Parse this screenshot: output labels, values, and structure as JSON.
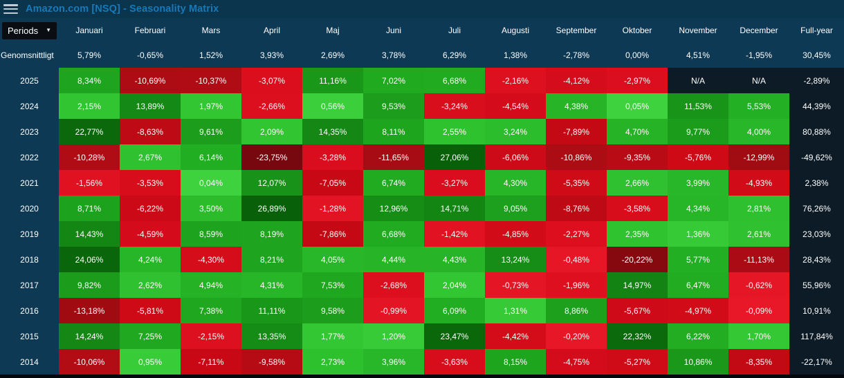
{
  "app": {
    "title": "Amazon.com [NSQ] - Seasonality Matrix"
  },
  "toolbar": {
    "periods_label": "Periods"
  },
  "chart_data": {
    "type": "heatmap",
    "columns": [
      "Januari",
      "Februari",
      "Mars",
      "April",
      "Maj",
      "Juni",
      "Juli",
      "Augusti",
      "September",
      "Oktober",
      "November",
      "December",
      "Full-year"
    ],
    "average": {
      "label": "Genomsnittligt",
      "values": [
        "5,79%",
        "-0,65%",
        "1,52%",
        "3,93%",
        "2,69%",
        "3,78%",
        "6,29%",
        "1,38%",
        "-2,78%",
        "0,00%",
        "4,51%",
        "-1,95%",
        "30,45%"
      ]
    },
    "rows": [
      {
        "year": "2025",
        "values": [
          "8,34%",
          "-10,69%",
          "-10,37%",
          "-3,07%",
          "11,16%",
          "7,02%",
          "6,68%",
          "-2,16%",
          "-4,12%",
          "-2,97%",
          "N/A",
          "N/A",
          "-2,89%"
        ]
      },
      {
        "year": "2024",
        "values": [
          "2,15%",
          "13,89%",
          "1,97%",
          "-2,66%",
          "0,56%",
          "9,53%",
          "-3,24%",
          "-4,54%",
          "4,38%",
          "0,05%",
          "11,53%",
          "5,53%",
          "44,39%"
        ]
      },
      {
        "year": "2023",
        "values": [
          "22,77%",
          "-8,63%",
          "9,61%",
          "2,09%",
          "14,35%",
          "8,11%",
          "2,55%",
          "3,24%",
          "-7,89%",
          "4,70%",
          "9,77%",
          "4,00%",
          "80,88%"
        ]
      },
      {
        "year": "2022",
        "values": [
          "-10,28%",
          "2,67%",
          "6,14%",
          "-23,75%",
          "-3,28%",
          "-11,65%",
          "27,06%",
          "-6,06%",
          "-10,86%",
          "-9,35%",
          "-5,76%",
          "-12,99%",
          "-49,62%"
        ]
      },
      {
        "year": "2021",
        "values": [
          "-1,56%",
          "-3,53%",
          "0,04%",
          "12,07%",
          "-7,05%",
          "6,74%",
          "-3,27%",
          "4,30%",
          "-5,35%",
          "2,66%",
          "3,99%",
          "-4,93%",
          "2,38%"
        ]
      },
      {
        "year": "2020",
        "values": [
          "8,71%",
          "-6,22%",
          "3,50%",
          "26,89%",
          "-1,28%",
          "12,96%",
          "14,71%",
          "9,05%",
          "-8,76%",
          "-3,58%",
          "4,34%",
          "2,81%",
          "76,26%"
        ]
      },
      {
        "year": "2019",
        "values": [
          "14,43%",
          "-4,59%",
          "8,59%",
          "8,19%",
          "-7,86%",
          "6,68%",
          "-1,42%",
          "-4,85%",
          "-2,27%",
          "2,35%",
          "1,36%",
          "2,61%",
          "23,03%"
        ]
      },
      {
        "year": "2018",
        "values": [
          "24,06%",
          "4,24%",
          "-4,30%",
          "8,21%",
          "4,05%",
          "4,44%",
          "4,43%",
          "13,24%",
          "-0,48%",
          "-20,22%",
          "5,77%",
          "-11,13%",
          "28,43%"
        ]
      },
      {
        "year": "2017",
        "values": [
          "9,82%",
          "2,62%",
          "4,94%",
          "4,31%",
          "7,53%",
          "-2,68%",
          "2,04%",
          "-0,73%",
          "-1,96%",
          "14,97%",
          "6,47%",
          "-0,62%",
          "55,96%"
        ]
      },
      {
        "year": "2016",
        "values": [
          "-13,18%",
          "-5,81%",
          "7,38%",
          "11,11%",
          "9,58%",
          "-0,99%",
          "6,09%",
          "1,31%",
          "8,86%",
          "-5,67%",
          "-4,97%",
          "-0,09%",
          "10,91%"
        ]
      },
      {
        "year": "2015",
        "values": [
          "14,24%",
          "7,25%",
          "-2,15%",
          "13,35%",
          "1,77%",
          "1,20%",
          "23,47%",
          "-4,42%",
          "-0,20%",
          "22,32%",
          "6,22%",
          "1,70%",
          "117,84%"
        ]
      },
      {
        "year": "2014",
        "values": [
          "-10,06%",
          "0,95%",
          "-7,11%",
          "-9,58%",
          "2,73%",
          "3,96%",
          "-3,63%",
          "8,15%",
          "-4,75%",
          "-5,27%",
          "10,86%",
          "-8,35%",
          "-22,17%"
        ]
      }
    ]
  },
  "colors": {
    "background": "#0d3954",
    "topbar_background": "#0b344d",
    "title": "#1779b8",
    "text": "#ffffff",
    "dropdown_background": "#0a0e12",
    "fullyear_background": "#0c1b26",
    "na_background": "#0c1b26",
    "bottom_strip": "#04070b",
    "positive_gradient": [
      [
        0,
        "#3ed23e"
      ],
      [
        2,
        "#32c632"
      ],
      [
        4,
        "#28b728"
      ],
      [
        7,
        "#20aa20"
      ],
      [
        10,
        "#1b9c1b"
      ],
      [
        13,
        "#168e16"
      ],
      [
        16,
        "#117e11"
      ],
      [
        20,
        "#0d6f0d"
      ],
      [
        24,
        "#0a660a"
      ],
      [
        28,
        "#075f07"
      ]
    ],
    "negative_gradient": [
      [
        0,
        "#e81828"
      ],
      [
        2,
        "#de1020"
      ],
      [
        4,
        "#d60c1b"
      ],
      [
        6,
        "#cd0a17"
      ],
      [
        8,
        "#c40914"
      ],
      [
        10,
        "#b20c15"
      ],
      [
        12,
        "#a50b13"
      ],
      [
        15,
        "#980a11"
      ],
      [
        20,
        "#880910"
      ],
      [
        24,
        "#770810"
      ]
    ]
  }
}
